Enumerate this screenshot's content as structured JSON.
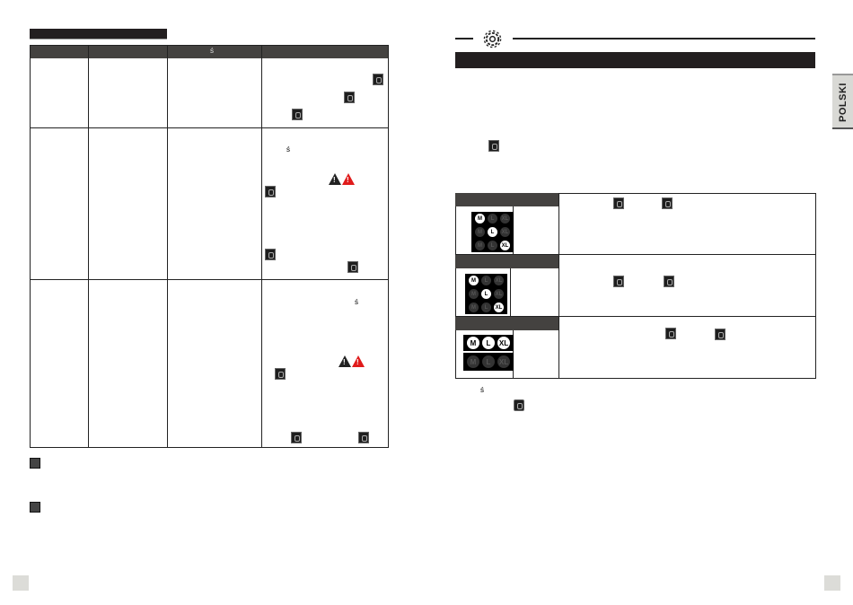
{
  "sidebar_tab": {
    "label": "POLSKI"
  },
  "left_table": {
    "header_glyph": "ś",
    "rows": 3
  },
  "right_note": {
    "glyph": "ś"
  },
  "size_selector": {
    "labels": [
      "M",
      "L",
      "XL"
    ],
    "states": [
      {
        "rows": [
          [
            "M"
          ],
          [
            "L"
          ],
          [
            "XL"
          ]
        ]
      },
      {
        "rows": [
          [
            "M"
          ],
          [
            "L"
          ],
          [
            "XL"
          ]
        ]
      },
      {
        "rows": [
          [
            "M",
            "L",
            "XL"
          ],
          []
        ]
      }
    ]
  },
  "colors": {
    "dark": "#231f20",
    "header": "#444240",
    "warning_red": "#e01b1b",
    "tab": "#d9d9d5"
  }
}
